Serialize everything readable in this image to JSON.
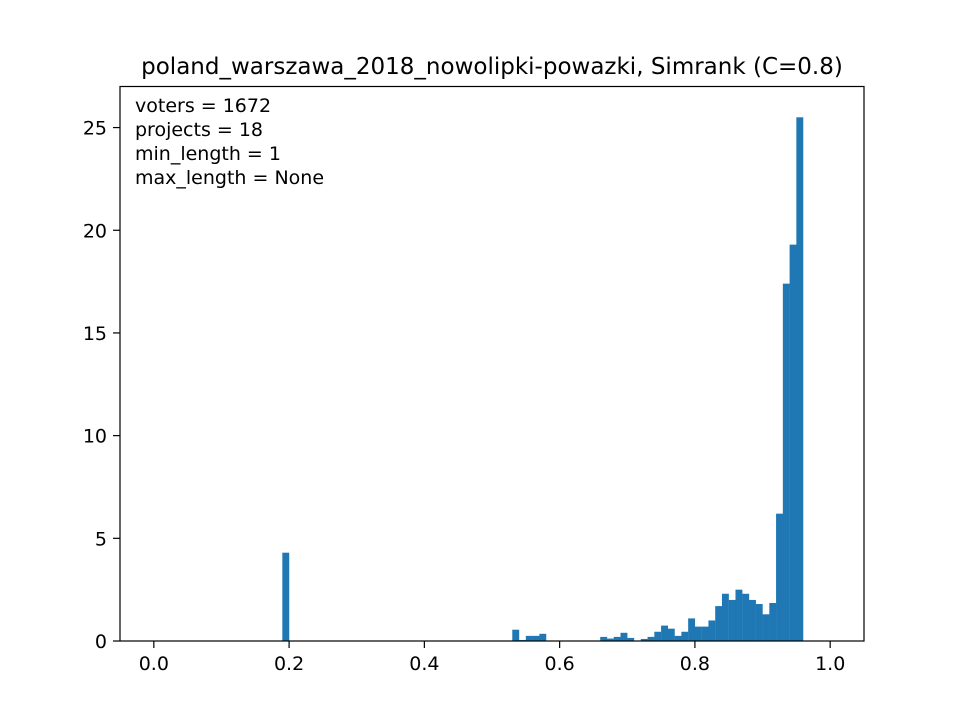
{
  "chart_data": {
    "type": "bar",
    "title": "poland_warszawa_2018_nowolipki-powazki, Simrank (C=0.8)",
    "xlabel": "",
    "ylabel": "",
    "xlim": [
      -0.05,
      1.05
    ],
    "ylim": [
      0,
      27
    ],
    "x_ticks": [
      0.0,
      0.2,
      0.4,
      0.6,
      0.8,
      1.0
    ],
    "x_tick_labels": [
      "0.0",
      "0.2",
      "0.4",
      "0.6",
      "0.8",
      "1.0"
    ],
    "y_ticks": [
      0,
      5,
      10,
      15,
      20,
      25
    ],
    "y_tick_labels": [
      "0",
      "5",
      "10",
      "15",
      "20",
      "25"
    ],
    "bin_width": 0.01,
    "bar_color": "#1f77b4",
    "grid": false,
    "annotations": [
      "voters = 1672",
      "projects = 18",
      "min_length = 1",
      "max_length = None"
    ],
    "bins": [
      {
        "x0": 0.19,
        "value": 4.3
      },
      {
        "x0": 0.53,
        "value": 0.55
      },
      {
        "x0": 0.54,
        "value": 0.05
      },
      {
        "x0": 0.55,
        "value": 0.25
      },
      {
        "x0": 0.56,
        "value": 0.25
      },
      {
        "x0": 0.57,
        "value": 0.35
      },
      {
        "x0": 0.66,
        "value": 0.2
      },
      {
        "x0": 0.67,
        "value": 0.12
      },
      {
        "x0": 0.68,
        "value": 0.2
      },
      {
        "x0": 0.69,
        "value": 0.4
      },
      {
        "x0": 0.7,
        "value": 0.15
      },
      {
        "x0": 0.72,
        "value": 0.1
      },
      {
        "x0": 0.73,
        "value": 0.2
      },
      {
        "x0": 0.74,
        "value": 0.45
      },
      {
        "x0": 0.75,
        "value": 0.75
      },
      {
        "x0": 0.76,
        "value": 0.6
      },
      {
        "x0": 0.77,
        "value": 0.25
      },
      {
        "x0": 0.78,
        "value": 0.45
      },
      {
        "x0": 0.79,
        "value": 1.1
      },
      {
        "x0": 0.8,
        "value": 0.7
      },
      {
        "x0": 0.81,
        "value": 0.7
      },
      {
        "x0": 0.82,
        "value": 1.0
      },
      {
        "x0": 0.83,
        "value": 1.7
      },
      {
        "x0": 0.84,
        "value": 2.3
      },
      {
        "x0": 0.85,
        "value": 2.0
      },
      {
        "x0": 0.86,
        "value": 2.5
      },
      {
        "x0": 0.87,
        "value": 2.3
      },
      {
        "x0": 0.88,
        "value": 2.0
      },
      {
        "x0": 0.89,
        "value": 1.8
      },
      {
        "x0": 0.9,
        "value": 1.3
      },
      {
        "x0": 0.91,
        "value": 1.85
      },
      {
        "x0": 0.92,
        "value": 6.2
      },
      {
        "x0": 0.93,
        "value": 17.4
      },
      {
        "x0": 0.94,
        "value": 19.3
      },
      {
        "x0": 0.95,
        "value": 25.5
      }
    ]
  }
}
